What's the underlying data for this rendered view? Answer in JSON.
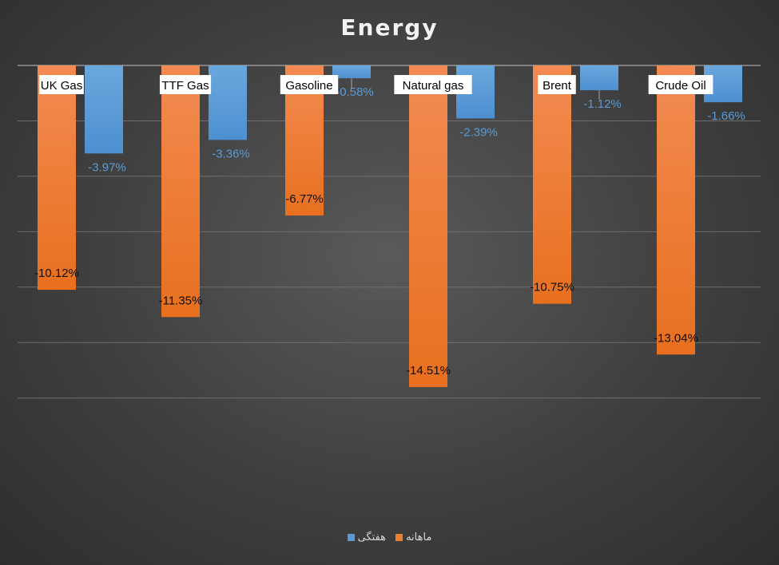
{
  "chart_data": {
    "type": "bar",
    "title": "Energy",
    "categories": [
      "UK Gas",
      "TTF Gas",
      "Gasoline",
      "Natural gas",
      "Brent",
      "Crude Oil"
    ],
    "series": [
      {
        "name": "ماهانه",
        "color": "#ed7d31",
        "values": [
          -10.12,
          -11.35,
          -6.77,
          -14.51,
          -10.75,
          -13.04
        ],
        "labels": [
          "-10.12%",
          "-11.35%",
          "-6.77%",
          "-14.51%",
          "-10.75%",
          "-13.04%"
        ]
      },
      {
        "name": "هفتگی",
        "color": "#5b9bd5",
        "values": [
          -3.97,
          -3.36,
          -0.58,
          -2.39,
          -1.12,
          -1.66
        ],
        "labels": [
          "-3.97%",
          "-3.36%",
          "-0.58%",
          "-2.39%",
          "-1.12%",
          "-1.66%"
        ]
      }
    ],
    "ylim": [
      -16,
      0
    ],
    "grid": true,
    "legend": "bottom",
    "xlabel": "",
    "ylabel": ""
  }
}
